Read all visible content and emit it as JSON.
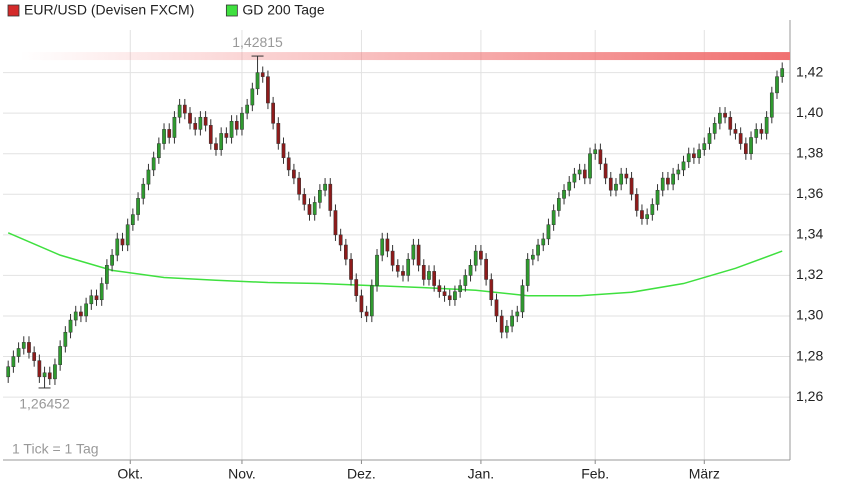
{
  "chart_data": {
    "type": "candlestick",
    "series": [
      {
        "name": "EUR/USD (Devisen FXCM)",
        "type": "candlestick",
        "color": "#d42a2a",
        "up_color": "#2f9a2f",
        "down_color": "#8e1b1b",
        "ohlc": [
          [
            1.27,
            1.278,
            1.267,
            1.275
          ],
          [
            1.275,
            1.283,
            1.272,
            1.28
          ],
          [
            1.28,
            1.287,
            1.277,
            1.284
          ],
          [
            1.284,
            1.29,
            1.281,
            1.287
          ],
          [
            1.287,
            1.29,
            1.279,
            1.282
          ],
          [
            1.282,
            1.285,
            1.275,
            1.278
          ],
          [
            1.278,
            1.281,
            1.267,
            1.27
          ],
          [
            1.27,
            1.275,
            1.26452,
            1.272
          ],
          [
            1.272,
            1.275,
            1.266,
            1.269
          ],
          [
            1.269,
            1.279,
            1.266,
            1.276
          ],
          [
            1.276,
            1.288,
            1.273,
            1.285
          ],
          [
            1.285,
            1.295,
            1.282,
            1.292
          ],
          [
            1.292,
            1.301,
            1.289,
            1.298
          ],
          [
            1.298,
            1.305,
            1.295,
            1.302
          ],
          [
            1.302,
            1.305,
            1.297,
            1.3
          ],
          [
            1.3,
            1.309,
            1.297,
            1.306
          ],
          [
            1.306,
            1.313,
            1.303,
            1.31
          ],
          [
            1.31,
            1.313,
            1.305,
            1.308
          ],
          [
            1.308,
            1.319,
            1.305,
            1.316
          ],
          [
            1.316,
            1.328,
            1.313,
            1.325
          ],
          [
            1.325,
            1.333,
            1.322,
            1.33
          ],
          [
            1.33,
            1.341,
            1.327,
            1.338
          ],
          [
            1.338,
            1.341,
            1.332,
            1.335
          ],
          [
            1.335,
            1.348,
            1.332,
            1.345
          ],
          [
            1.345,
            1.353,
            1.342,
            1.35
          ],
          [
            1.35,
            1.361,
            1.347,
            1.358
          ],
          [
            1.358,
            1.368,
            1.355,
            1.365
          ],
          [
            1.365,
            1.375,
            1.362,
            1.372
          ],
          [
            1.372,
            1.381,
            1.369,
            1.378
          ],
          [
            1.378,
            1.388,
            1.375,
            1.385
          ],
          [
            1.385,
            1.395,
            1.382,
            1.392
          ],
          [
            1.392,
            1.395,
            1.385,
            1.388
          ],
          [
            1.388,
            1.401,
            1.385,
            1.398
          ],
          [
            1.398,
            1.407,
            1.395,
            1.404
          ],
          [
            1.404,
            1.407,
            1.397,
            1.4
          ],
          [
            1.4,
            1.403,
            1.392,
            1.395
          ],
          [
            1.395,
            1.398,
            1.389,
            1.392
          ],
          [
            1.392,
            1.401,
            1.389,
            1.398
          ],
          [
            1.398,
            1.401,
            1.391,
            1.394
          ],
          [
            1.394,
            1.397,
            1.382,
            1.385
          ],
          [
            1.385,
            1.388,
            1.379,
            1.382
          ],
          [
            1.382,
            1.393,
            1.379,
            1.39
          ],
          [
            1.39,
            1.393,
            1.385,
            1.388
          ],
          [
            1.388,
            1.399,
            1.385,
            1.396
          ],
          [
            1.396,
            1.399,
            1.389,
            1.392
          ],
          [
            1.392,
            1.403,
            1.389,
            1.4
          ],
          [
            1.4,
            1.407,
            1.397,
            1.404
          ],
          [
            1.404,
            1.415,
            1.401,
            1.412
          ],
          [
            1.412,
            1.42815,
            1.409,
            1.42
          ],
          [
            1.42,
            1.423,
            1.415,
            1.418
          ],
          [
            1.418,
            1.421,
            1.402,
            1.405
          ],
          [
            1.405,
            1.408,
            1.392,
            1.395
          ],
          [
            1.395,
            1.398,
            1.382,
            1.385
          ],
          [
            1.385,
            1.388,
            1.375,
            1.378
          ],
          [
            1.378,
            1.381,
            1.369,
            1.372
          ],
          [
            1.372,
            1.375,
            1.365,
            1.368
          ],
          [
            1.368,
            1.371,
            1.357,
            1.36
          ],
          [
            1.36,
            1.363,
            1.352,
            1.355
          ],
          [
            1.355,
            1.358,
            1.347,
            1.35
          ],
          [
            1.35,
            1.359,
            1.347,
            1.356
          ],
          [
            1.356,
            1.365,
            1.353,
            1.362
          ],
          [
            1.362,
            1.368,
            1.359,
            1.365
          ],
          [
            1.365,
            1.368,
            1.349,
            1.352
          ],
          [
            1.352,
            1.355,
            1.337,
            1.34
          ],
          [
            1.34,
            1.343,
            1.332,
            1.335
          ],
          [
            1.335,
            1.338,
            1.325,
            1.328
          ],
          [
            1.328,
            1.331,
            1.315,
            1.318
          ],
          [
            1.318,
            1.321,
            1.307,
            1.31
          ],
          [
            1.31,
            1.313,
            1.299,
            1.302
          ],
          [
            1.302,
            1.305,
            1.297,
            1.3
          ],
          [
            1.3,
            1.318,
            1.297,
            1.315
          ],
          [
            1.315,
            1.333,
            1.312,
            1.33
          ],
          [
            1.33,
            1.341,
            1.327,
            1.338
          ],
          [
            1.338,
            1.341,
            1.329,
            1.332
          ],
          [
            1.332,
            1.335,
            1.322,
            1.325
          ],
          [
            1.325,
            1.328,
            1.319,
            1.322
          ],
          [
            1.322,
            1.325,
            1.317,
            1.32
          ],
          [
            1.32,
            1.331,
            1.317,
            1.328
          ],
          [
            1.328,
            1.338,
            1.325,
            1.335
          ],
          [
            1.335,
            1.338,
            1.322,
            1.325
          ],
          [
            1.325,
            1.328,
            1.315,
            1.318
          ],
          [
            1.318,
            1.325,
            1.315,
            1.322
          ],
          [
            1.322,
            1.325,
            1.312,
            1.315
          ],
          [
            1.315,
            1.318,
            1.309,
            1.312
          ],
          [
            1.312,
            1.315,
            1.307,
            1.31
          ],
          [
            1.31,
            1.313,
            1.305,
            1.308
          ],
          [
            1.308,
            1.315,
            1.305,
            1.312
          ],
          [
            1.312,
            1.318,
            1.309,
            1.315
          ],
          [
            1.315,
            1.323,
            1.312,
            1.32
          ],
          [
            1.32,
            1.328,
            1.317,
            1.325
          ],
          [
            1.325,
            1.335,
            1.322,
            1.332
          ],
          [
            1.332,
            1.335,
            1.325,
            1.328
          ],
          [
            1.328,
            1.331,
            1.315,
            1.318
          ],
          [
            1.318,
            1.321,
            1.305,
            1.308
          ],
          [
            1.308,
            1.311,
            1.297,
            1.3
          ],
          [
            1.3,
            1.303,
            1.289,
            1.292
          ],
          [
            1.292,
            1.298,
            1.289,
            1.295
          ],
          [
            1.295,
            1.303,
            1.292,
            1.3
          ],
          [
            1.3,
            1.305,
            1.297,
            1.302
          ],
          [
            1.302,
            1.318,
            1.299,
            1.315
          ],
          [
            1.315,
            1.331,
            1.312,
            1.328
          ],
          [
            1.328,
            1.333,
            1.325,
            1.33
          ],
          [
            1.33,
            1.338,
            1.327,
            1.335
          ],
          [
            1.335,
            1.341,
            1.332,
            1.338
          ],
          [
            1.338,
            1.348,
            1.335,
            1.345
          ],
          [
            1.345,
            1.355,
            1.342,
            1.352
          ],
          [
            1.352,
            1.361,
            1.349,
            1.358
          ],
          [
            1.358,
            1.365,
            1.355,
            1.362
          ],
          [
            1.362,
            1.369,
            1.359,
            1.366
          ],
          [
            1.366,
            1.373,
            1.363,
            1.37
          ],
          [
            1.37,
            1.375,
            1.367,
            1.372
          ],
          [
            1.372,
            1.375,
            1.365,
            1.368
          ],
          [
            1.368,
            1.383,
            1.365,
            1.38
          ],
          [
            1.38,
            1.385,
            1.377,
            1.382
          ],
          [
            1.382,
            1.385,
            1.372,
            1.375
          ],
          [
            1.375,
            1.378,
            1.365,
            1.368
          ],
          [
            1.368,
            1.371,
            1.359,
            1.362
          ],
          [
            1.362,
            1.368,
            1.359,
            1.365
          ],
          [
            1.365,
            1.373,
            1.362,
            1.37
          ],
          [
            1.37,
            1.373,
            1.365,
            1.368
          ],
          [
            1.368,
            1.371,
            1.357,
            1.36
          ],
          [
            1.36,
            1.363,
            1.349,
            1.352
          ],
          [
            1.352,
            1.355,
            1.345,
            1.348
          ],
          [
            1.348,
            1.353,
            1.345,
            1.35
          ],
          [
            1.35,
            1.358,
            1.347,
            1.355
          ],
          [
            1.355,
            1.365,
            1.352,
            1.362
          ],
          [
            1.362,
            1.371,
            1.359,
            1.368
          ],
          [
            1.368,
            1.371,
            1.362,
            1.365
          ],
          [
            1.365,
            1.373,
            1.362,
            1.37
          ],
          [
            1.37,
            1.375,
            1.367,
            1.372
          ],
          [
            1.372,
            1.379,
            1.369,
            1.376
          ],
          [
            1.376,
            1.383,
            1.373,
            1.38
          ],
          [
            1.38,
            1.383,
            1.375,
            1.378
          ],
          [
            1.378,
            1.385,
            1.375,
            1.382
          ],
          [
            1.382,
            1.388,
            1.379,
            1.385
          ],
          [
            1.385,
            1.393,
            1.382,
            1.39
          ],
          [
            1.39,
            1.398,
            1.387,
            1.395
          ],
          [
            1.395,
            1.403,
            1.392,
            1.4
          ],
          [
            1.4,
            1.403,
            1.395,
            1.398
          ],
          [
            1.398,
            1.401,
            1.389,
            1.392
          ],
          [
            1.392,
            1.395,
            1.387,
            1.39
          ],
          [
            1.39,
            1.393,
            1.382,
            1.385
          ],
          [
            1.385,
            1.388,
            1.377,
            1.38
          ],
          [
            1.38,
            1.391,
            1.377,
            1.388
          ],
          [
            1.388,
            1.395,
            1.385,
            1.392
          ],
          [
            1.392,
            1.395,
            1.387,
            1.39
          ],
          [
            1.39,
            1.401,
            1.387,
            1.398
          ],
          [
            1.398,
            1.413,
            1.395,
            1.41
          ],
          [
            1.41,
            1.421,
            1.407,
            1.418
          ],
          [
            1.418,
            1.425,
            1.415,
            1.422
          ]
        ]
      },
      {
        "name": "GD 200 Tage",
        "type": "line",
        "color": "#3fe03f",
        "x": [
          0,
          10,
          20,
          30,
          40,
          50,
          60,
          70,
          80,
          90,
          100,
          110,
          120,
          130,
          140,
          149
        ],
        "values": [
          1.341,
          1.33,
          1.3225,
          1.319,
          1.3176,
          1.3165,
          1.316,
          1.315,
          1.314,
          1.3127,
          1.31,
          1.31,
          1.3117,
          1.316,
          1.3235,
          1.332
        ]
      }
    ],
    "xlim": [
      -1,
      150.5
    ],
    "xticks": [
      {
        "value": 23.5,
        "label": "Okt."
      },
      {
        "value": 45,
        "label": "Nov."
      },
      {
        "value": 68,
        "label": "Dez."
      },
      {
        "value": 91,
        "label": "Jan."
      },
      {
        "value": 113,
        "label": "Feb."
      },
      {
        "value": 134,
        "label": "März"
      }
    ],
    "ylim": [
      1.229,
      1.441
    ],
    "yticks": [
      {
        "value": 1.26,
        "label": "1,26"
      },
      {
        "value": 1.28,
        "label": "1,28"
      },
      {
        "value": 1.3,
        "label": "1,30"
      },
      {
        "value": 1.32,
        "label": "1,32"
      },
      {
        "value": 1.34,
        "label": "1,34"
      },
      {
        "value": 1.36,
        "label": "1,36"
      },
      {
        "value": 1.38,
        "label": "1,38"
      },
      {
        "value": 1.4,
        "label": "1,40"
      },
      {
        "value": 1.42,
        "label": "1,42"
      }
    ],
    "grid": true,
    "annotations": [
      {
        "label": "1,42815",
        "value": 1.42815,
        "x": 48,
        "position": "above"
      },
      {
        "label": "1,26452",
        "value": 1.26452,
        "x": 7,
        "position": "below"
      }
    ],
    "footnote": "1 Tick = 1 Tag"
  }
}
